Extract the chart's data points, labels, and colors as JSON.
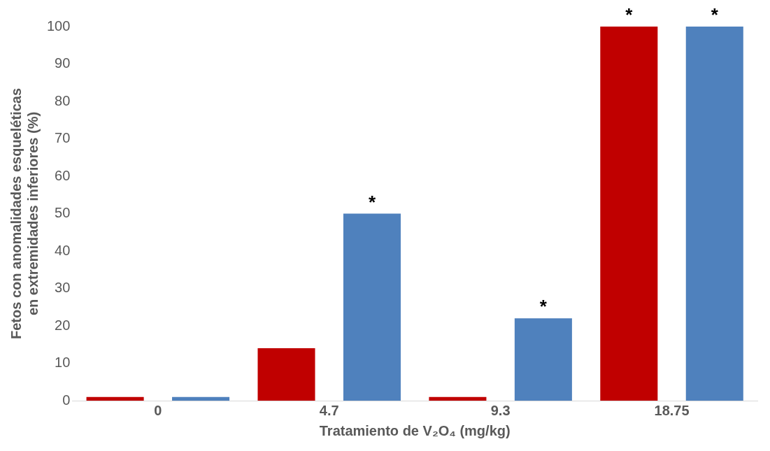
{
  "chart_data": {
    "type": "bar",
    "xlabel": "Tratamiento de V₂O₄ (mg/kg)",
    "ylabel": "Fetos con anomalidades esqueléticas en extremidades inferiores (%)",
    "categories": [
      "0",
      "4.7",
      "9.3",
      "18.75"
    ],
    "series": [
      {
        "color": "#c00000",
        "values": [
          1,
          14,
          1,
          100
        ],
        "value_labels": [
          null,
          null,
          null,
          "*"
        ]
      },
      {
        "color": "#4f81bd",
        "values": [
          1,
          50,
          22,
          100
        ],
        "value_labels": [
          null,
          "*",
          "*",
          "*"
        ]
      }
    ],
    "ylim": [
      0,
      100
    ],
    "yticks": [
      0,
      10,
      20,
      30,
      40,
      50,
      60,
      70,
      80,
      90,
      100
    ],
    "grid": false,
    "legend": false
  }
}
